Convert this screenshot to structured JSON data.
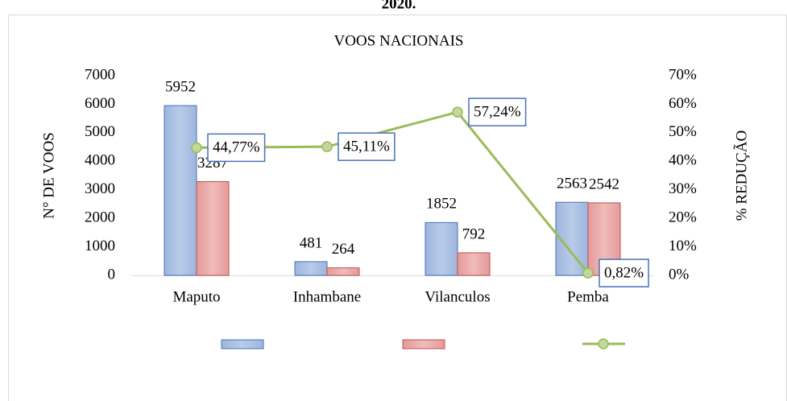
{
  "chart_data": {
    "type": "bar",
    "caption": "2020.",
    "title": "VOOS NACIONAIS",
    "ylabel": "N° DE VOOS",
    "y2label": "% REDUÇÃO",
    "categories": [
      "Maputo",
      "Inhambane",
      "Vilanculos",
      "Pemba"
    ],
    "series": [
      {
        "type": "bar",
        "color": "#4a72b8",
        "values": [
          5952,
          481,
          1852,
          2563
        ]
      },
      {
        "type": "bar",
        "color": "#c0504d",
        "values": [
          3287,
          264,
          792,
          2542
        ]
      },
      {
        "type": "line",
        "axis": "y2",
        "color": "#9bbb59",
        "values": [
          44.77,
          45.11,
          57.24,
          0.82
        ],
        "value_labels": [
          "44,77%",
          "45,11%",
          "57,24%",
          "0,82%"
        ]
      }
    ],
    "ylim": [
      0,
      7000
    ],
    "yticks": [
      0,
      1000,
      2000,
      3000,
      4000,
      5000,
      6000,
      7000
    ],
    "y2lim": [
      0,
      70
    ],
    "y2ticks": [
      {
        "value": 0,
        "label": "0%"
      },
      {
        "value": 10,
        "label": "10%"
      },
      {
        "value": 20,
        "label": "20%"
      },
      {
        "value": 30,
        "label": "30%"
      },
      {
        "value": 40,
        "label": "40%"
      },
      {
        "value": 50,
        "label": "50%"
      },
      {
        "value": 60,
        "label": "60%"
      },
      {
        "value": 70,
        "label": "70%"
      }
    ],
    "legend": "bottom",
    "grid": false
  }
}
